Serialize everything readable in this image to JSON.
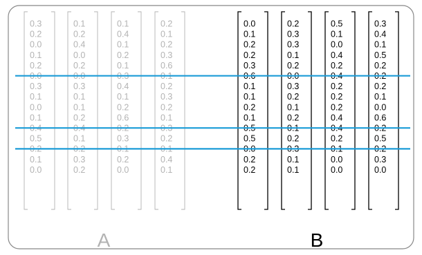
{
  "colors": {
    "frame": "#888888",
    "text_a": "#b3b3b3",
    "text_b": "#000000",
    "line": "#1a9bd7"
  },
  "matrices": {
    "a": {
      "label": "A",
      "columns": [
        [
          "0.3",
          "0.2",
          "0.0",
          "0.1",
          "0.2",
          "0.0",
          "0.3",
          "0.1",
          "0.0",
          "0.1",
          "0.4",
          "0.5",
          "0.2",
          "0.1",
          "0.0"
        ],
        [
          "0.1",
          "0.2",
          "0.4",
          "0.0",
          "0.2",
          "0.0",
          "0.3",
          "0.1",
          "0.1",
          "0.2",
          "0.4",
          "0.1",
          "0.2",
          "0.3",
          "0.2"
        ],
        [
          "0.1",
          "0.4",
          "0.1",
          "0.2",
          "0.1",
          "0.3",
          "0.4",
          "0.1",
          "0.2",
          "0.6",
          "0.2",
          "0.3",
          "0.1",
          "0.2",
          "0.0"
        ],
        [
          "0.2",
          "0.1",
          "0.2",
          "0.3",
          "0.6",
          "0.1",
          "0.2",
          "0.3",
          "0.2",
          "0.1",
          "0.3",
          "0.2",
          "0.1",
          "0.4",
          "0.1"
        ]
      ]
    },
    "b": {
      "label": "B",
      "columns": [
        [
          "0.0",
          "0.1",
          "0.2",
          "0.2",
          "0.3",
          "0.6",
          "0.1",
          "0.1",
          "0.2",
          "0.1",
          "0.5",
          "0.5",
          "0.0",
          "0.2",
          "0.2"
        ],
        [
          "0.2",
          "0.3",
          "0.3",
          "0.1",
          "0.2",
          "0.0",
          "0.3",
          "0.2",
          "0.1",
          "0.2",
          "0.1",
          "0.2",
          "0.3",
          "0.1",
          "0.1"
        ],
        [
          "0.5",
          "0.1",
          "0.0",
          "0.4",
          "0.2",
          "0.4",
          "0.2",
          "0.2",
          "0.2",
          "0.4",
          "0.4",
          "0.2",
          "0.1",
          "0.0",
          "0.0"
        ],
        [
          "0.3",
          "0.4",
          "0.1",
          "0.5",
          "0.2",
          "0.2",
          "0.2",
          "0.1",
          "0.0",
          "0.6",
          "0.2",
          "0.5",
          "0.2",
          "0.3",
          "0.0"
        ]
      ]
    }
  },
  "highlighted_rows": [
    5,
    10,
    12
  ]
}
